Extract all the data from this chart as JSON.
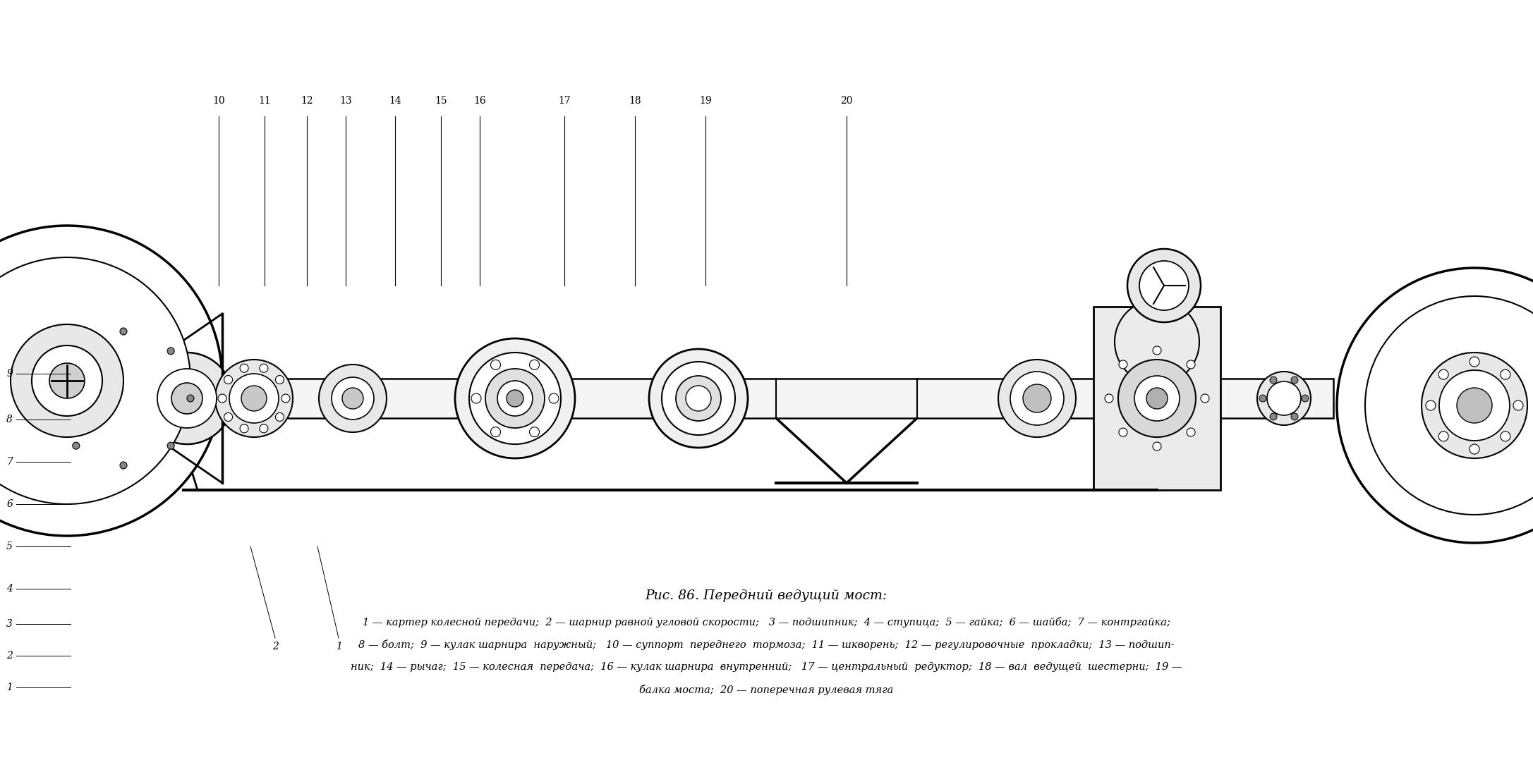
{
  "title": "Рис. 86. Передний ведущий мост:",
  "title_fontsize": 13.5,
  "caption_line1": "1 — картер колесной передачи;  2 — шарнир равной угловой скорости;   3 — подшипник;  4 — ступица;  5 — гайка;  6 — шайба;  7 — контргайка;",
  "caption_line2": "8 — болт;  9 — кулак шарнира  наружный;   10 — суппорт  переднего  тормоза;  11 — шкворень;  12 — регулировочные  прокладки;  13 — подшип-",
  "caption_line3": "ник;  14 — рычаг;  15 — колесная  передача;  16 — кулак шарнира  внутренний;   17 — центральный  редуктор;  18 — вал  ведущей  шестерни;  19 —",
  "caption_line4": "балка моста;  20 — поперечная рулевая тяга",
  "caption_fontsize": 10.5,
  "bg_color": "#ffffff",
  "text_color": "#000000",
  "fig_width": 21.73,
  "fig_height": 10.85,
  "dpi": 100
}
